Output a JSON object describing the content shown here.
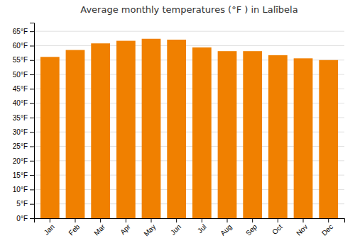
{
  "chart_data": {
    "type": "bar",
    "title": "Average monthly temperatures (°F ) in Lalībela",
    "categories": [
      "Jan",
      "Feb",
      "Mar",
      "Apr",
      "May",
      "Jun",
      "Jul",
      "Aug",
      "Sep",
      "Oct",
      "Nov",
      "Dec"
    ],
    "values": [
      56.1,
      58.5,
      60.8,
      61.7,
      62.4,
      62.1,
      59.4,
      58.1,
      58.1,
      56.7,
      55.6,
      55.0
    ],
    "color": "#F08000",
    "ylim": [
      0,
      68
    ],
    "yticks": [
      {
        "value": 0,
        "label": "0°F"
      },
      {
        "value": 5,
        "label": "5°F"
      },
      {
        "value": 10,
        "label": "10°F"
      },
      {
        "value": 15,
        "label": "15°F"
      },
      {
        "value": 20,
        "label": "20°F"
      },
      {
        "value": 25,
        "label": "25°F"
      },
      {
        "value": 30,
        "label": "30°F"
      },
      {
        "value": 35,
        "label": "35°F"
      },
      {
        "value": 40,
        "label": "40°F"
      },
      {
        "value": 45,
        "label": "45°F"
      },
      {
        "value": 50,
        "label": "50°F"
      },
      {
        "value": 55,
        "label": "55°F"
      },
      {
        "value": 60,
        "label": "60°F"
      },
      {
        "value": 65,
        "label": "65°F"
      }
    ],
    "grid": true
  }
}
